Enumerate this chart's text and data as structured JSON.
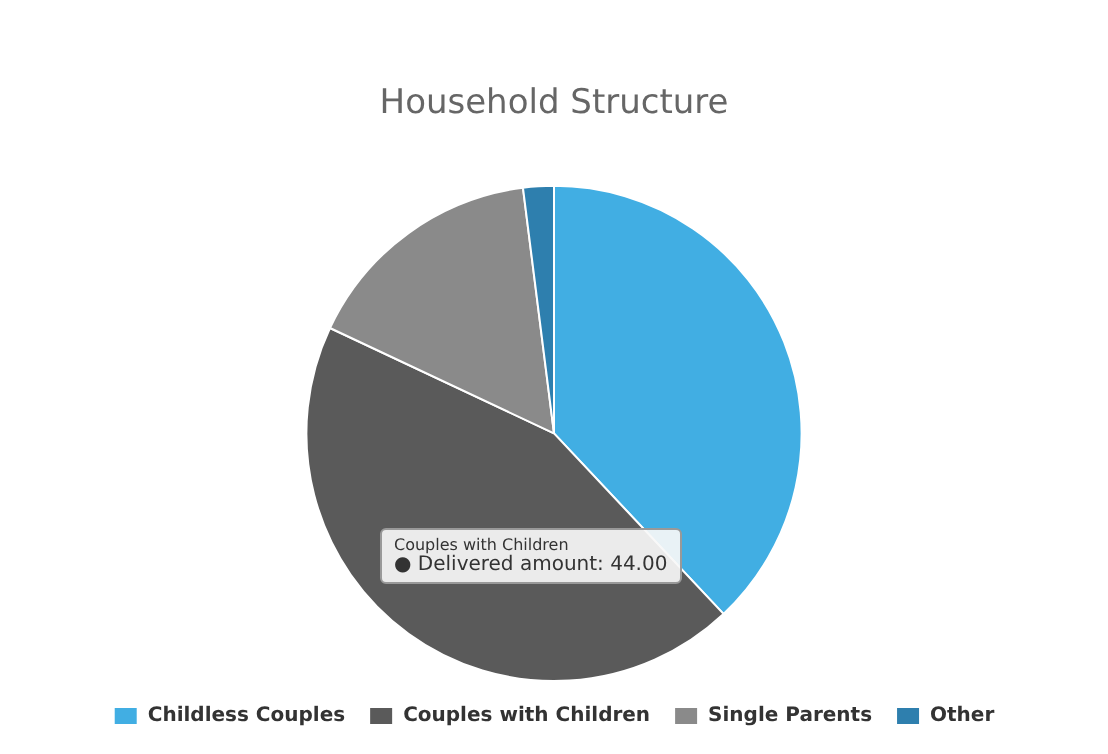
{
  "chart_data": {
    "type": "pie",
    "title": "Household Structure",
    "categories": [
      "Childless Couples",
      "Couples with Children",
      "Single Parents",
      "Other"
    ],
    "values": [
      38,
      44,
      16,
      2
    ],
    "colors": [
      "#41aee3",
      "#5a5a5a",
      "#8a8a8a",
      "#2e7fae"
    ],
    "legend": "bottom",
    "annotations": [
      "Couples with Children",
      "● Delivered amount: 44.00"
    ]
  }
}
